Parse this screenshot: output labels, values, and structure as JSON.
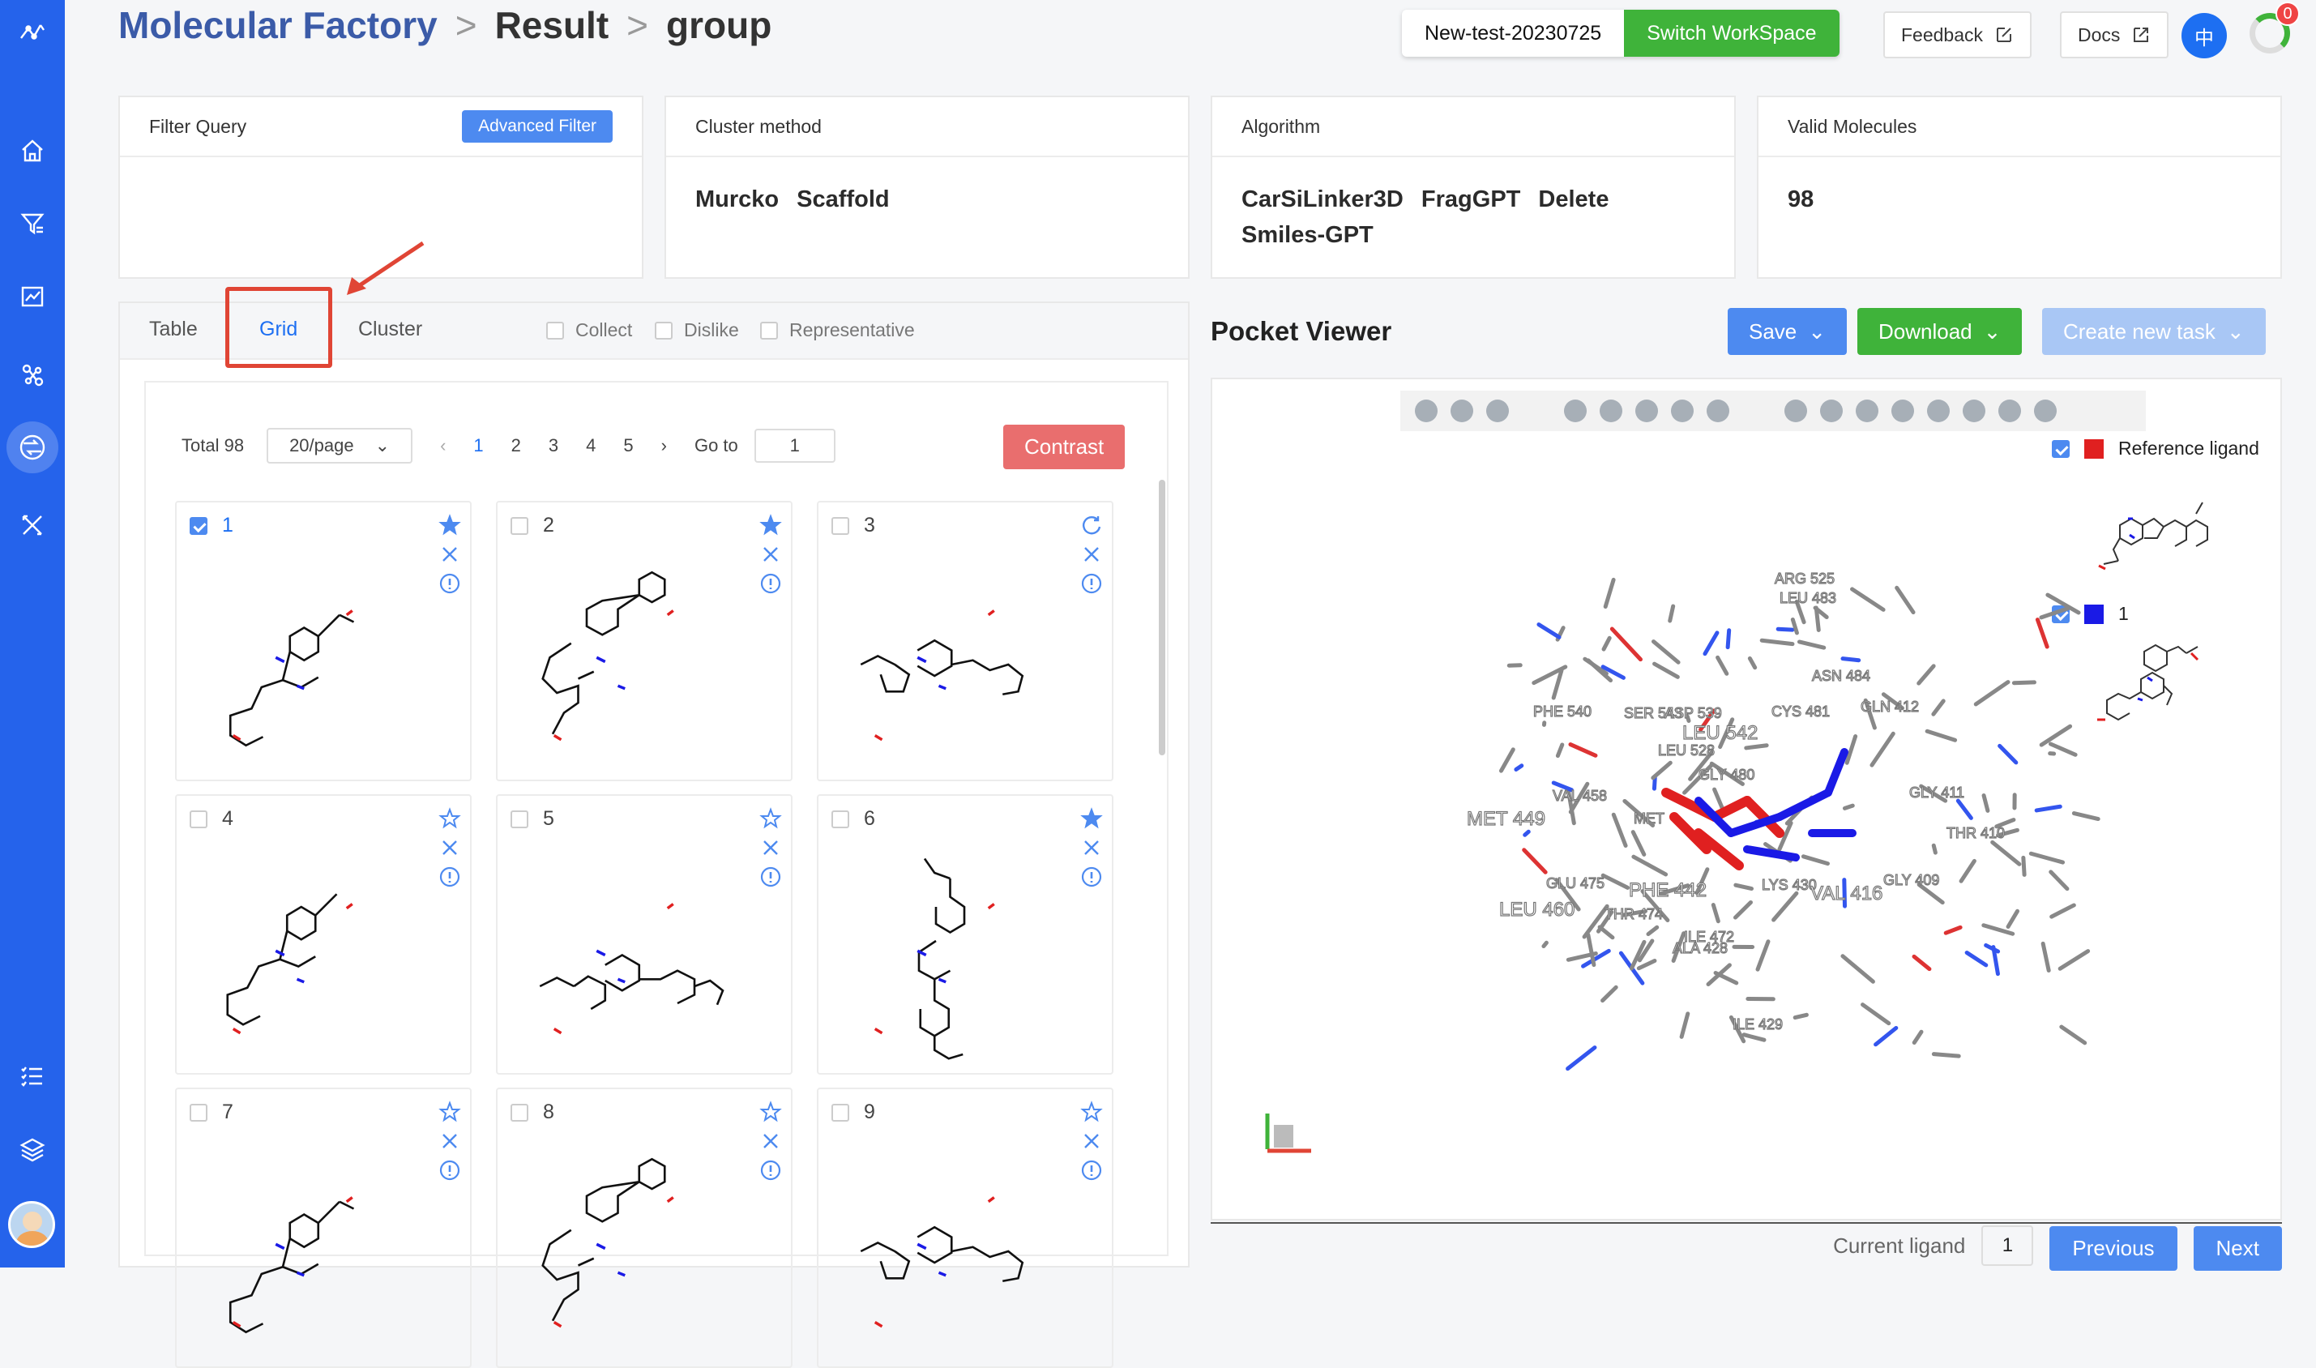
{
  "breadcrumb": {
    "root": "Molecular Factory",
    "sep": ">",
    "result": "Result",
    "current": "group"
  },
  "workspace": {
    "name": "New-test-20230725",
    "switch_label": "Switch WorkSpace"
  },
  "header": {
    "feedback": "Feedback",
    "docs": "Docs",
    "lang": "中",
    "badge": "0"
  },
  "cards": {
    "filter": {
      "title": "Filter Query",
      "button": "Advanced Filter"
    },
    "cluster": {
      "title": "Cluster method",
      "value": "Murcko Scaffold"
    },
    "algorithm": {
      "title": "Algorithm",
      "value": "CarSiLinker3D FragGPT Delete Smiles-GPT"
    },
    "valid": {
      "title": "Valid Molecules",
      "value": "98"
    }
  },
  "tabs": {
    "table": "Table",
    "grid": "Grid",
    "cluster": "Cluster"
  },
  "filters": {
    "collect": "Collect",
    "dislike": "Dislike",
    "representative": "Representative"
  },
  "pager": {
    "total": "Total 98",
    "per_page": "20/page",
    "pages": [
      "1",
      "2",
      "3",
      "4",
      "5"
    ],
    "goto_label": "Go to",
    "goto_value": "1",
    "contrast": "Contrast"
  },
  "molecules": [
    {
      "n": "1",
      "checked": true,
      "star": "filled"
    },
    {
      "n": "2",
      "checked": false,
      "star": "filled"
    },
    {
      "n": "3",
      "checked": false,
      "star": "refresh"
    },
    {
      "n": "4",
      "checked": false,
      "star": "outline"
    },
    {
      "n": "5",
      "checked": false,
      "star": "outline"
    },
    {
      "n": "6",
      "checked": false,
      "star": "filled"
    },
    {
      "n": "7",
      "checked": false,
      "star": "outline"
    },
    {
      "n": "8",
      "checked": false,
      "star": "outline"
    },
    {
      "n": "9",
      "checked": false,
      "star": "outline"
    }
  ],
  "viewer": {
    "title": "Pocket Viewer",
    "save": "Save",
    "download": "Download",
    "create": "Create new task",
    "legend_ref": "Reference ligand",
    "legend_1": "1",
    "residues": [
      "ARG 525",
      "LEU 483",
      "ASN 484",
      "CYS 481",
      "GLN 412",
      "PHE 540",
      "SER 543",
      "ASP 539",
      "LEU 542",
      "LEU 528",
      "GLY 480",
      "VAL 458",
      "GLY 411",
      "MET 449",
      "MET",
      "THR 410",
      "GLU 475",
      "PHE 442",
      "LYS 430",
      "VAL 416",
      "GLY 409",
      "LEU 460",
      "THR 474",
      "ILE 472",
      "ALA 428",
      "ILE 429"
    ],
    "current_label": "Current ligand",
    "current_value": "1",
    "previous": "Previous",
    "next": "Next",
    "ref_color": "#e02020",
    "lig_color": "#1a1ae6"
  }
}
